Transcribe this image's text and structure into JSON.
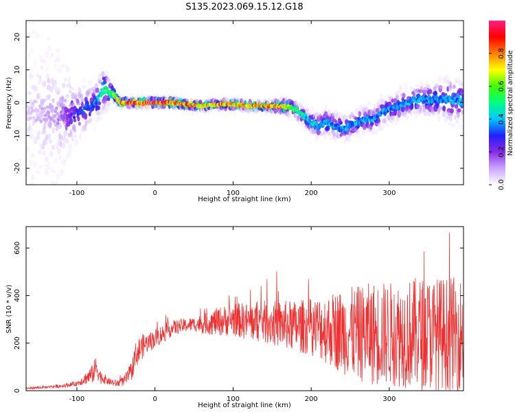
{
  "title": "S135.2023.069.15.12.G18",
  "colors": {
    "snr_line": "#f03030",
    "frame": "#000000",
    "background": "#ffffff"
  },
  "colorbar": {
    "label": "Normalized spectral amplitude",
    "ticks": [
      "0.0",
      "0.2",
      "0.4",
      "0.6",
      "0.8"
    ],
    "tick_values": [
      0.0,
      0.2,
      0.4,
      0.6,
      0.8
    ],
    "range": [
      0,
      1
    ],
    "colormap": [
      "#ffffff",
      "#c9a6ff",
      "#8a2be2",
      "#2020ff",
      "#00c8ff",
      "#00ff80",
      "#40ff00",
      "#ffff00",
      "#ff8000",
      "#ff0000",
      "#ff2080"
    ]
  },
  "chart_data": [
    {
      "type": "heatmap",
      "title": "S135.2023.069.15.12.G18",
      "xlabel": "Height of straight line (km)",
      "ylabel": "Frequency (Hz)",
      "xlim": [
        -165,
        395
      ],
      "ylim": [
        -25,
        25
      ],
      "x_ticks": [
        -100,
        0,
        100,
        200,
        300
      ],
      "y_ticks": [
        -20,
        -10,
        0,
        10,
        20
      ],
      "x_tick_labels": [
        "-100",
        "0",
        "100",
        "200",
        "300"
      ],
      "y_tick_labels": [
        "-20",
        "-10",
        "0",
        "10",
        "20"
      ],
      "ridge": {
        "x": [
          -165,
          -140,
          -120,
          -100,
          -80,
          -65,
          -55,
          -45,
          -30,
          -10,
          0,
          20,
          40,
          60,
          80,
          100,
          120,
          140,
          160,
          175,
          190,
          200,
          210,
          220,
          230,
          240,
          250,
          260,
          270,
          280,
          290,
          300,
          320,
          340,
          360,
          380,
          395
        ],
        "freq": [
          -2,
          -3,
          -4,
          -3,
          -1,
          4,
          3,
          0,
          0,
          0,
          0,
          0,
          -0.5,
          -1,
          -0.5,
          -0.5,
          -1,
          -1,
          -1,
          -1.5,
          -4,
          -6,
          -7,
          -6,
          -7,
          -8,
          -7,
          -6,
          -5,
          -5,
          -3,
          -2,
          0,
          1,
          1,
          1,
          0
        ],
        "amplitude": [
          0.05,
          0.1,
          0.15,
          0.3,
          0.35,
          0.5,
          0.6,
          0.85,
          0.95,
          1.0,
          1.0,
          0.95,
          0.85,
          0.8,
          0.85,
          0.85,
          0.85,
          0.85,
          0.85,
          0.6,
          0.5,
          0.45,
          0.45,
          0.45,
          0.4,
          0.4,
          0.4,
          0.4,
          0.4,
          0.4,
          0.4,
          0.4,
          0.4,
          0.4,
          0.4,
          0.4,
          0.4
        ],
        "spread_hz": [
          18,
          16,
          12,
          6,
          5,
          5,
          2,
          1,
          1,
          1,
          1,
          1,
          1,
          1,
          1,
          1,
          1,
          1,
          1.5,
          2,
          2,
          2.5,
          3,
          3,
          3,
          3,
          3,
          3,
          3,
          3,
          3,
          3,
          3.5,
          3.5,
          4,
          5,
          5
        ]
      }
    },
    {
      "type": "line",
      "xlabel": "Height of straight line (km)",
      "ylabel": "SNR (10 * v/v)",
      "xlim": [
        -165,
        395
      ],
      "ylim": [
        0,
        690
      ],
      "x_ticks": [
        -100,
        0,
        100,
        200,
        300
      ],
      "y_ticks": [
        0,
        200,
        400,
        600
      ],
      "x_tick_labels": [
        "-100",
        "0",
        "100",
        "200",
        "300"
      ],
      "y_tick_labels": [
        "0",
        "200",
        "400",
        "600"
      ],
      "series": [
        {
          "x": [
            -165,
            -140,
            -120,
            -100,
            -90,
            -80,
            -75,
            -70,
            -60,
            -50,
            -40,
            -30,
            -25,
            -20,
            -15,
            -10,
            0,
            10,
            20,
            30,
            40,
            50,
            60,
            70,
            80,
            100,
            120,
            140,
            160,
            180,
            200,
            220,
            240,
            260,
            280,
            300,
            320,
            340,
            360,
            380,
            395
          ],
          "y": [
            10,
            15,
            20,
            30,
            50,
            70,
            100,
            60,
            40,
            30,
            40,
            80,
            150,
            170,
            190,
            200,
            220,
            240,
            260,
            270,
            275,
            280,
            280,
            285,
            290,
            300,
            290,
            290,
            280,
            270,
            270,
            260,
            250,
            240,
            240,
            240,
            240,
            240,
            240,
            240,
            240
          ],
          "noise_amplitude": [
            5,
            5,
            8,
            10,
            25,
            40,
            50,
            30,
            15,
            15,
            20,
            40,
            50,
            60,
            50,
            40,
            40,
            40,
            35,
            30,
            30,
            30,
            40,
            50,
            60,
            70,
            80,
            90,
            100,
            110,
            120,
            150,
            180,
            200,
            220,
            220,
            230,
            240,
            240,
            240,
            240
          ],
          "peak": 690
        }
      ]
    }
  ]
}
